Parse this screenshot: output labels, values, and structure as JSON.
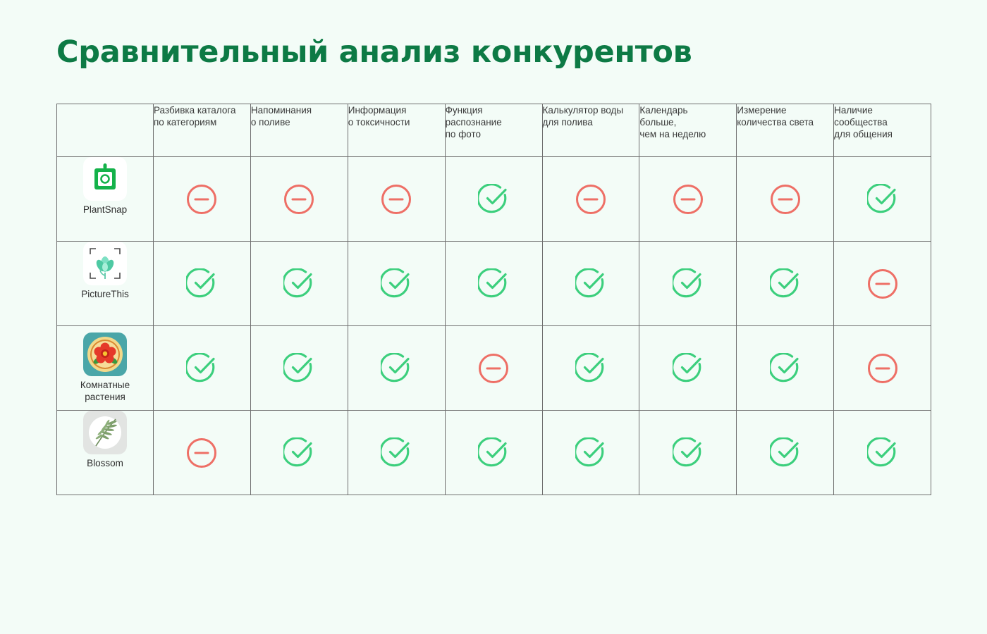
{
  "page": {
    "title": "Сравнительный анализ конкурентов"
  },
  "colors": {
    "title": "#0d7a45",
    "check": "#3ccf7d",
    "minus": "#ee6f66",
    "background": "#f3fcf7"
  },
  "features": [
    "Разбивка каталога\nпо категориям",
    "Напоминания\nо поливе",
    "Информация\nо токсичности",
    "Функция\nраспознание\nпо фото",
    "Калькулятор воды\nдля полива",
    "Календарь\nбольше,\nчем на неделю",
    "Измерение\nколичества света",
    "Наличие\nсообщества\nдля общения"
  ],
  "apps": [
    {
      "name": "PlantSnap",
      "icon": "plantsnap-logo-icon",
      "statuses": [
        "minus",
        "minus",
        "minus",
        "check",
        "minus",
        "minus",
        "minus",
        "check"
      ]
    },
    {
      "name": "PictureThis",
      "icon": "picturethis-logo-icon",
      "statuses": [
        "check",
        "check",
        "check",
        "check",
        "check",
        "check",
        "check",
        "minus"
      ]
    },
    {
      "name": "Комнатные\nрастения",
      "icon": "komnatnye-rasteniya-logo-icon",
      "statuses": [
        "check",
        "check",
        "check",
        "minus",
        "check",
        "check",
        "check",
        "minus"
      ]
    },
    {
      "name": "Blossom",
      "icon": "blossom-logo-icon",
      "statuses": [
        "minus",
        "check",
        "check",
        "check",
        "check",
        "check",
        "check",
        "check"
      ]
    }
  ],
  "status_icons": {
    "check": "check-circle-icon",
    "minus": "minus-circle-icon"
  }
}
